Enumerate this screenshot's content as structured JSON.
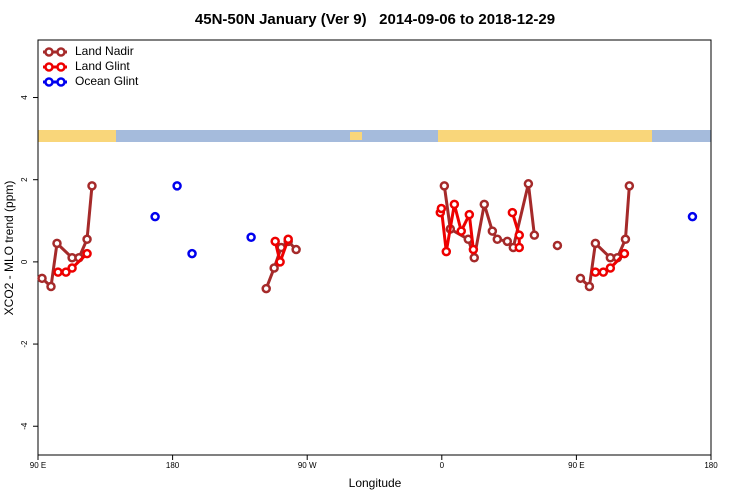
{
  "chart_data": {
    "type": "line",
    "title": "45N-50N January (Ver 9)   2014-09-06 to 2018-12-29",
    "xlabel": "Longitude",
    "ylabel": "XCO2 - MLO trend (ppm)",
    "xlim": [
      90,
      540
    ],
    "ylim": [
      -4.7,
      5.4
    ],
    "xticks": [
      {
        "value": 90,
        "label": "90 E"
      },
      {
        "value": 180,
        "label": "180"
      },
      {
        "value": 270,
        "label": "90 W"
      },
      {
        "value": 360,
        "label": "0"
      },
      {
        "value": 450,
        "label": "90 E"
      },
      {
        "value": 540,
        "label": "180"
      }
    ],
    "yticks": [
      -4,
      -2,
      0,
      2,
      4
    ],
    "legend": "top-left",
    "series": [
      {
        "name": "Land Nadir",
        "color": "#a52a2a",
        "x": [
          92.7,
          98.7,
          102.7,
          112.8,
          117.4,
          122.8,
          126.1,
          null,
          242.6,
          247.9,
          252.6,
          257.3,
          262.6,
          null,
          361.7,
          365.7,
          377.7,
          381.7,
          388.4,
          393.8,
          397.1,
          403.8,
          407.8,
          417.9,
          421.9,
          null,
          437.3,
          null,
          452.7,
          458.7,
          462.7,
          472.7,
          477.4,
          482.8,
          485.4
        ],
        "values": [
          -0.4,
          -0.6,
          0.45,
          0.1,
          0.1,
          0.55,
          1.85,
          null,
          -0.65,
          -0.15,
          0.35,
          0.5,
          0.3,
          null,
          1.85,
          0.8,
          0.55,
          0.1,
          1.4,
          0.75,
          0.55,
          0.5,
          0.35,
          1.9,
          0.65,
          null,
          0.4,
          null,
          -0.4,
          -0.6,
          0.45,
          0.1,
          0.1,
          0.55,
          1.85
        ]
      },
      {
        "name": "Land Glint",
        "color": "#ee0000",
        "x": [
          103.4,
          108.7,
          112.8,
          122.8,
          null,
          248.6,
          251.9,
          257.3,
          null,
          359.0,
          359.7,
          363.0,
          368.4,
          373.0,
          378.4,
          381.1,
          null,
          407.2,
          411.8,
          411.8,
          null,
          462.7,
          468.0,
          472.7,
          482.1
        ],
        "values": [
          -0.25,
          -0.25,
          -0.15,
          0.2,
          null,
          0.5,
          0.0,
          0.55,
          null,
          1.2,
          1.3,
          0.25,
          1.4,
          0.75,
          1.15,
          0.3,
          null,
          1.2,
          0.65,
          0.35,
          null,
          -0.25,
          -0.25,
          -0.15,
          0.2
        ]
      },
      {
        "name": "Ocean Glint",
        "color": "#0000ee",
        "x": [
          168.3,
          null,
          183.0,
          null,
          193.0,
          null,
          232.5,
          null,
          527.6
        ],
        "values": [
          1.1,
          null,
          1.85,
          null,
          0.2,
          null,
          0.6,
          null,
          1.1
        ]
      }
    ]
  }
}
